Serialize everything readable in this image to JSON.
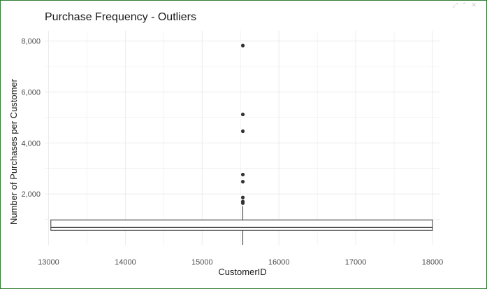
{
  "window": {
    "controls_icons": [
      "restore-icon",
      "collapse-icon",
      "close-icon"
    ]
  },
  "chart_data": {
    "type": "boxplot",
    "title": "Purchase Frequency - Outliers",
    "xlabel": "CustomerID",
    "ylabel": "Number of Purchases per Customer",
    "xlim": [
      12950,
      18100
    ],
    "ylim": [
      0,
      8400
    ],
    "x_ticks": [
      13000,
      14000,
      15000,
      16000,
      17000,
      18000
    ],
    "x_tick_labels": [
      "13000",
      "14000",
      "15000",
      "16000",
      "17000",
      "18000"
    ],
    "y_ticks": [
      2000,
      4000,
      6000,
      8000
    ],
    "y_tick_labels": [
      "2,000",
      "4,000",
      "6,000",
      "8,000"
    ],
    "grid": true,
    "box": {
      "x_center": 15530,
      "x_left": 13030,
      "x_right": 18000,
      "q1": 570,
      "median": 680,
      "q3": 980,
      "whisker_low": 0,
      "whisker_high": 1530
    },
    "outliers": [
      1640,
      1700,
      1860,
      2480,
      2760,
      4460,
      5120,
      7820
    ],
    "colors": {
      "box_stroke": "#333333",
      "outlier": "#333333",
      "grid": "#ebebeb",
      "frame": "#2e7d32"
    }
  }
}
